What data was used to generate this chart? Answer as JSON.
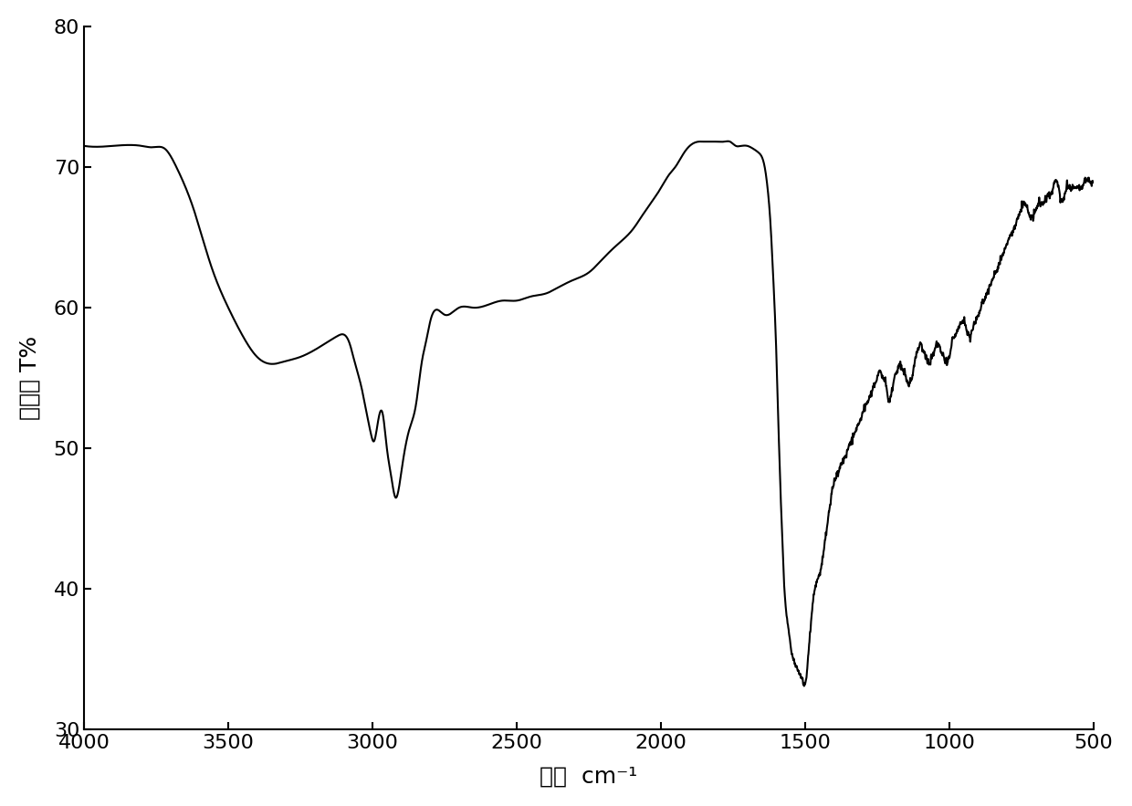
{
  "title": "",
  "xlabel": "波数  cm⁻¹",
  "ylabel": "吸光度 T%",
  "xlim": [
    500,
    4000
  ],
  "ylim": [
    30,
    80
  ],
  "xticks": [
    500,
    1000,
    1500,
    2000,
    2500,
    3000,
    3500,
    4000
  ],
  "yticks": [
    30,
    40,
    50,
    60,
    70,
    80
  ],
  "line_color": "#000000",
  "line_width": 1.5,
  "background_color": "#ffffff",
  "xlabel_fontsize": 18,
  "ylabel_fontsize": 18,
  "tick_fontsize": 16,
  "waypoints": [
    [
      4000,
      71.5
    ],
    [
      3900,
      71.5
    ],
    [
      3800,
      71.5
    ],
    [
      3760,
      71.4
    ],
    [
      3720,
      71.3
    ],
    [
      3680,
      70.0
    ],
    [
      3620,
      67.0
    ],
    [
      3560,
      63.0
    ],
    [
      3500,
      60.0
    ],
    [
      3450,
      58.0
    ],
    [
      3400,
      56.5
    ],
    [
      3350,
      56.0
    ],
    [
      3300,
      56.2
    ],
    [
      3250,
      56.5
    ],
    [
      3200,
      57.0
    ],
    [
      3160,
      57.5
    ],
    [
      3120,
      58.0
    ],
    [
      3080,
      57.5
    ],
    [
      3060,
      56.0
    ],
    [
      3040,
      54.5
    ],
    [
      3020,
      52.5
    ],
    [
      3005,
      51.0
    ],
    [
      2995,
      50.5
    ],
    [
      2980,
      52.0
    ],
    [
      2965,
      52.5
    ],
    [
      2950,
      50.0
    ],
    [
      2935,
      48.0
    ],
    [
      2920,
      46.5
    ],
    [
      2910,
      47.0
    ],
    [
      2895,
      49.0
    ],
    [
      2870,
      51.5
    ],
    [
      2850,
      53.0
    ],
    [
      2830,
      56.0
    ],
    [
      2810,
      58.0
    ],
    [
      2800,
      59.0
    ],
    [
      2750,
      59.5
    ],
    [
      2700,
      60.0
    ],
    [
      2650,
      60.0
    ],
    [
      2600,
      60.2
    ],
    [
      2550,
      60.5
    ],
    [
      2500,
      60.5
    ],
    [
      2450,
      60.8
    ],
    [
      2400,
      61.0
    ],
    [
      2350,
      61.5
    ],
    [
      2300,
      62.0
    ],
    [
      2250,
      62.5
    ],
    [
      2200,
      63.5
    ],
    [
      2150,
      64.5
    ],
    [
      2100,
      65.5
    ],
    [
      2050,
      67.0
    ],
    [
      2000,
      68.5
    ],
    [
      1970,
      69.5
    ],
    [
      1950,
      70.0
    ],
    [
      1920,
      71.0
    ],
    [
      1900,
      71.5
    ],
    [
      1870,
      71.8
    ],
    [
      1850,
      71.8
    ],
    [
      1820,
      71.8
    ],
    [
      1800,
      71.8
    ],
    [
      1780,
      71.8
    ],
    [
      1760,
      71.8
    ],
    [
      1740,
      71.5
    ],
    [
      1720,
      71.5
    ],
    [
      1700,
      71.5
    ],
    [
      1680,
      71.3
    ],
    [
      1660,
      71.0
    ],
    [
      1640,
      70.0
    ],
    [
      1630,
      68.5
    ],
    [
      1620,
      66.0
    ],
    [
      1610,
      62.0
    ],
    [
      1600,
      57.0
    ],
    [
      1590,
      50.0
    ],
    [
      1580,
      44.0
    ],
    [
      1570,
      39.5
    ],
    [
      1560,
      37.5
    ],
    [
      1550,
      36.0
    ],
    [
      1540,
      35.0
    ],
    [
      1530,
      34.5
    ],
    [
      1520,
      34.0
    ],
    [
      1510,
      33.5
    ],
    [
      1500,
      33.2
    ],
    [
      1490,
      35.0
    ],
    [
      1480,
      37.5
    ],
    [
      1470,
      39.5
    ],
    [
      1460,
      40.5
    ],
    [
      1450,
      41.0
    ],
    [
      1440,
      42.0
    ],
    [
      1430,
      43.5
    ],
    [
      1420,
      45.0
    ],
    [
      1410,
      46.5
    ],
    [
      1400,
      47.5
    ],
    [
      1390,
      48.0
    ],
    [
      1380,
      48.5
    ],
    [
      1370,
      49.0
    ],
    [
      1360,
      49.5
    ],
    [
      1350,
      50.0
    ],
    [
      1340,
      50.5
    ],
    [
      1330,
      51.0
    ],
    [
      1320,
      51.5
    ],
    [
      1310,
      52.0
    ],
    [
      1300,
      52.5
    ],
    [
      1290,
      53.0
    ],
    [
      1280,
      53.5
    ],
    [
      1270,
      54.0
    ],
    [
      1260,
      54.5
    ],
    [
      1250,
      55.0
    ],
    [
      1240,
      55.5
    ],
    [
      1230,
      55.0
    ],
    [
      1220,
      54.5
    ],
    [
      1210,
      53.5
    ],
    [
      1200,
      54.0
    ],
    [
      1190,
      55.0
    ],
    [
      1180,
      55.5
    ],
    [
      1170,
      56.0
    ],
    [
      1160,
      55.5
    ],
    [
      1150,
      55.0
    ],
    [
      1140,
      54.5
    ],
    [
      1130,
      55.0
    ],
    [
      1120,
      56.0
    ],
    [
      1110,
      57.0
    ],
    [
      1100,
      57.5
    ],
    [
      1090,
      57.0
    ],
    [
      1080,
      56.5
    ],
    [
      1070,
      56.0
    ],
    [
      1060,
      56.5
    ],
    [
      1050,
      57.0
    ],
    [
      1040,
      57.5
    ],
    [
      1030,
      57.0
    ],
    [
      1020,
      56.5
    ],
    [
      1010,
      56.0
    ],
    [
      1000,
      56.5
    ],
    [
      990,
      57.5
    ],
    [
      980,
      58.0
    ],
    [
      970,
      58.5
    ],
    [
      960,
      59.0
    ],
    [
      950,
      59.0
    ],
    [
      940,
      58.5
    ],
    [
      930,
      58.0
    ],
    [
      920,
      58.5
    ],
    [
      910,
      59.0
    ],
    [
      900,
      59.5
    ],
    [
      890,
      60.0
    ],
    [
      880,
      60.5
    ],
    [
      870,
      61.0
    ],
    [
      860,
      61.5
    ],
    [
      850,
      62.0
    ],
    [
      840,
      62.5
    ],
    [
      830,
      63.0
    ],
    [
      820,
      63.5
    ],
    [
      810,
      64.0
    ],
    [
      800,
      64.5
    ],
    [
      790,
      65.0
    ],
    [
      780,
      65.5
    ],
    [
      770,
      66.0
    ],
    [
      760,
      66.5
    ],
    [
      750,
      67.0
    ],
    [
      740,
      67.5
    ],
    [
      730,
      67.0
    ],
    [
      720,
      66.5
    ],
    [
      710,
      66.5
    ],
    [
      700,
      67.0
    ],
    [
      690,
      67.5
    ],
    [
      680,
      67.5
    ],
    [
      670,
      67.5
    ],
    [
      660,
      68.0
    ],
    [
      650,
      68.0
    ],
    [
      640,
      68.5
    ],
    [
      630,
      69.0
    ],
    [
      620,
      68.5
    ],
    [
      610,
      67.5
    ],
    [
      600,
      68.0
    ],
    [
      590,
      68.5
    ],
    [
      580,
      68.5
    ],
    [
      570,
      68.5
    ],
    [
      560,
      68.5
    ],
    [
      550,
      68.5
    ],
    [
      540,
      68.5
    ],
    [
      530,
      69.0
    ],
    [
      520,
      69.0
    ],
    [
      510,
      69.0
    ],
    [
      500,
      69.0
    ]
  ]
}
